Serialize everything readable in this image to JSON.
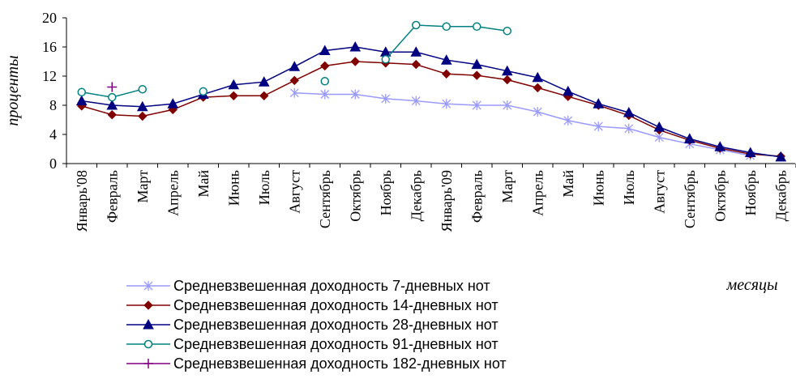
{
  "chart_data": {
    "type": "line",
    "ylabel": "проценты",
    "xlabel": "месяцы",
    "ylim": [
      0,
      20
    ],
    "yticks": [
      "0",
      "4",
      "8",
      "12",
      "16",
      "20"
    ],
    "categories": [
      "Январь'08",
      "Февраль",
      "Март",
      "Апрель",
      "Май",
      "Июнь",
      "Июль",
      "Август",
      "Сентябрь",
      "Октябрь",
      "Ноябрь",
      "Декабрь",
      "Январь'09",
      "Февраль",
      "Март",
      "Апрель",
      "Май",
      "Июнь",
      "Июль",
      "Август",
      "Сентябрь",
      "Октябрь",
      "Ноябрь",
      "Декабрь"
    ],
    "legend_position": "bottom",
    "grid": false,
    "series": [
      {
        "name": "Средневзвешенная доходность 7-дневных нот",
        "color": "#9999ff",
        "marker": "star",
        "values": [
          null,
          null,
          null,
          null,
          null,
          null,
          null,
          9.7,
          9.5,
          9.5,
          8.9,
          8.6,
          8.2,
          8.0,
          8.0,
          7.1,
          5.9,
          5.1,
          4.8,
          3.6,
          2.7,
          1.9,
          1.1,
          null
        ]
      },
      {
        "name": "Средневзвешенная доходность 14-дневных нот",
        "color": "#800000",
        "marker": "diamond",
        "values": [
          7.9,
          6.7,
          6.5,
          7.4,
          9.1,
          9.3,
          9.3,
          11.4,
          13.4,
          14.0,
          13.8,
          13.6,
          12.3,
          12.1,
          11.5,
          10.4,
          9.2,
          8.0,
          6.6,
          4.6,
          3.2,
          2.1,
          1.3,
          1.0
        ]
      },
      {
        "name": "Средневзвешенная доходность 28-дневных нот",
        "color": "#000080",
        "marker": "triangle",
        "values": [
          8.6,
          8.0,
          7.8,
          8.2,
          9.5,
          10.8,
          11.2,
          13.3,
          15.5,
          16.0,
          15.3,
          15.3,
          14.2,
          13.6,
          12.7,
          11.8,
          9.9,
          8.2,
          7.0,
          5.0,
          3.4,
          2.3,
          1.5,
          0.9
        ]
      },
      {
        "name": "Средневзвешенная доходность 91-дневных нот",
        "color": "#008080",
        "marker": "circle",
        "values": [
          9.8,
          9.1,
          10.2,
          null,
          9.9,
          null,
          null,
          null,
          11.3,
          null,
          14.3,
          19.0,
          18.8,
          18.8,
          18.2,
          null,
          null,
          null,
          null,
          null,
          null,
          null,
          null,
          null
        ]
      },
      {
        "name": "Средневзвешенная доходность 182-дневных нот",
        "color": "#800080",
        "marker": "plus",
        "values": [
          null,
          10.5,
          null,
          null,
          null,
          null,
          null,
          null,
          null,
          null,
          null,
          null,
          null,
          null,
          null,
          null,
          null,
          null,
          null,
          null,
          null,
          null,
          null,
          null
        ]
      }
    ]
  }
}
